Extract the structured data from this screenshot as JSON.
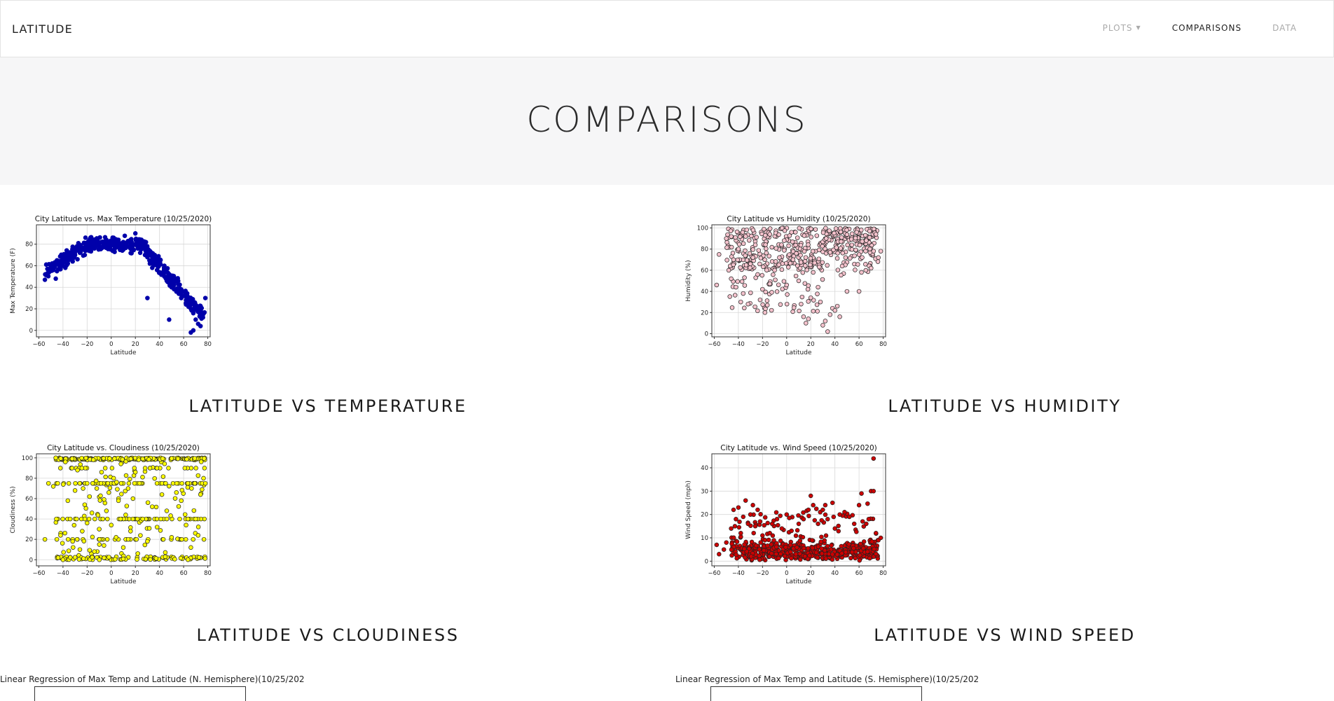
{
  "navbar": {
    "brand": "LATITUDE",
    "links": [
      {
        "label": "PLOTS",
        "active": false,
        "dropdown": true
      },
      {
        "label": "COMPARISONS",
        "active": true,
        "dropdown": false
      },
      {
        "label": "DATA",
        "active": false,
        "dropdown": false
      }
    ]
  },
  "hero": {
    "title": "COMPARISONS"
  },
  "plots": [
    {
      "caption": "LATITUDE VS TEMPERATURE",
      "chart_data": {
        "type": "scatter",
        "title": "City Latitude vs. Max Temperature (10/25/2020)",
        "xlabel": "Latitude",
        "ylabel": "Max Temperature (F)",
        "xlim": [
          -62,
          82
        ],
        "ylim": [
          -6,
          98
        ],
        "xticks": [
          -60,
          -40,
          -20,
          0,
          20,
          40,
          60,
          80
        ],
        "yticks": [
          0,
          20,
          40,
          60,
          80
        ],
        "grid": true,
        "marker_color": "#0000aa",
        "edge_color": "#0000aa",
        "profile": "temp",
        "points": [
          [
            -55,
            47
          ],
          [
            -52,
            54
          ],
          [
            -46,
            48
          ],
          [
            -45,
            55
          ],
          [
            -42,
            57
          ],
          [
            -40,
            60
          ],
          [
            -38,
            58
          ],
          [
            -36,
            62
          ],
          [
            -34,
            66
          ],
          [
            -32,
            64
          ],
          [
            -30,
            70
          ],
          [
            -28,
            66
          ],
          [
            -26,
            72
          ],
          [
            -24,
            75
          ],
          [
            -22,
            70
          ],
          [
            -20,
            78
          ],
          [
            -18,
            80
          ],
          [
            -16,
            82
          ],
          [
            -14,
            76
          ],
          [
            -12,
            84
          ],
          [
            -10,
            80
          ],
          [
            -8,
            82
          ],
          [
            -6,
            78
          ],
          [
            -4,
            84
          ],
          [
            -2,
            80
          ],
          [
            0,
            82
          ],
          [
            2,
            86
          ],
          [
            4,
            80
          ],
          [
            6,
            84
          ],
          [
            8,
            78
          ],
          [
            10,
            82
          ],
          [
            12,
            80
          ],
          [
            14,
            78
          ],
          [
            16,
            84
          ],
          [
            18,
            80
          ],
          [
            20,
            90
          ],
          [
            22,
            76
          ],
          [
            24,
            72
          ],
          [
            26,
            80
          ],
          [
            28,
            70
          ],
          [
            30,
            68
          ],
          [
            32,
            62
          ],
          [
            34,
            58
          ],
          [
            36,
            64
          ],
          [
            38,
            56
          ],
          [
            40,
            54
          ],
          [
            42,
            52
          ],
          [
            44,
            50
          ],
          [
            46,
            46
          ],
          [
            48,
            44
          ],
          [
            50,
            40
          ],
          [
            52,
            42
          ],
          [
            54,
            36
          ],
          [
            56,
            34
          ],
          [
            58,
            30
          ],
          [
            60,
            32
          ],
          [
            62,
            28
          ],
          [
            64,
            22
          ],
          [
            66,
            20
          ],
          [
            68,
            16
          ],
          [
            70,
            10
          ],
          [
            72,
            6
          ],
          [
            74,
            4
          ],
          [
            66,
            -2
          ],
          [
            68,
            0
          ],
          [
            62,
            24
          ],
          [
            58,
            38
          ],
          [
            54,
            46
          ],
          [
            48,
            52
          ],
          [
            44,
            60
          ],
          [
            40,
            64
          ],
          [
            36,
            70
          ],
          [
            30,
            30
          ],
          [
            48,
            10
          ],
          [
            76,
            12
          ],
          [
            78,
            30
          ],
          [
            -48,
            56
          ],
          [
            -44,
            62
          ]
        ]
      }
    },
    {
      "caption": "LATITUDE VS HUMIDITY",
      "chart_data": {
        "type": "scatter",
        "title": "City Latitude vs Humidity (10/25/2020)",
        "xlabel": "Latitude",
        "ylabel": "Humidity (%)",
        "xlim": [
          -62,
          82
        ],
        "ylim": [
          -3,
          103
        ],
        "xticks": [
          -60,
          -40,
          -20,
          0,
          20,
          40,
          60,
          80
        ],
        "yticks": [
          0,
          20,
          40,
          60,
          80,
          100
        ],
        "grid": true,
        "marker_color": "#f4c2cc",
        "edge_color": "#222222",
        "profile": "humid",
        "points": [
          [
            -58,
            46
          ],
          [
            -56,
            75
          ],
          [
            -50,
            90
          ],
          [
            -48,
            60
          ],
          [
            -46,
            52
          ],
          [
            -44,
            70
          ],
          [
            -42,
            44
          ],
          [
            -40,
            80
          ],
          [
            -38,
            30
          ],
          [
            -36,
            38
          ],
          [
            -34,
            92
          ],
          [
            -32,
            28
          ],
          [
            -30,
            66
          ],
          [
            -28,
            72
          ],
          [
            -26,
            84
          ],
          [
            -24,
            56
          ],
          [
            -22,
            32
          ],
          [
            -20,
            42
          ],
          [
            -18,
            20
          ],
          [
            -16,
            27
          ],
          [
            -14,
            94
          ],
          [
            -10,
            60
          ],
          [
            -6,
            72
          ],
          [
            -2,
            88
          ],
          [
            0,
            46
          ],
          [
            4,
            96
          ],
          [
            8,
            76
          ],
          [
            10,
            50
          ],
          [
            12,
            28
          ],
          [
            14,
            16
          ],
          [
            16,
            10
          ],
          [
            18,
            14
          ],
          [
            20,
            34
          ],
          [
            22,
            58
          ],
          [
            26,
            44
          ],
          [
            28,
            30
          ],
          [
            30,
            8
          ],
          [
            32,
            12
          ],
          [
            34,
            2
          ],
          [
            36,
            18
          ],
          [
            38,
            24
          ],
          [
            40,
            22
          ],
          [
            42,
            26
          ],
          [
            44,
            16
          ],
          [
            46,
            64
          ],
          [
            50,
            40
          ],
          [
            54,
            84
          ],
          [
            58,
            96
          ],
          [
            60,
            40
          ],
          [
            62,
            58
          ],
          [
            66,
            88
          ],
          [
            70,
            62
          ],
          [
            72,
            78
          ],
          [
            74,
            94
          ],
          [
            76,
            72
          ],
          [
            78,
            78
          ]
        ]
      }
    },
    {
      "caption": "LATITUDE VS CLOUDINESS",
      "chart_data": {
        "type": "scatter",
        "title": "City Latitude vs. Cloudiness (10/25/2020)",
        "xlabel": "Latitude",
        "ylabel": "Cloudiness (%)",
        "xlim": [
          -62,
          82
        ],
        "ylim": [
          -6,
          104
        ],
        "xticks": [
          -60,
          -40,
          -20,
          0,
          20,
          40,
          60,
          80
        ],
        "yticks": [
          0,
          20,
          40,
          60,
          80,
          100
        ],
        "grid": true,
        "marker_color": "#ffff00",
        "edge_color": "#222222",
        "profile": "cloud",
        "points": [
          [
            -55,
            20
          ],
          [
            -52,
            75
          ],
          [
            -48,
            72
          ],
          [
            -46,
            100
          ],
          [
            -44,
            2
          ],
          [
            -42,
            24
          ],
          [
            -40,
            0
          ],
          [
            -38,
            96
          ],
          [
            -36,
            58
          ],
          [
            -34,
            40
          ],
          [
            -32,
            18
          ],
          [
            -30,
            68
          ],
          [
            -28,
            88
          ],
          [
            -26,
            10
          ],
          [
            -24,
            28
          ],
          [
            -22,
            54
          ],
          [
            -20,
            36
          ],
          [
            -18,
            62
          ],
          [
            -16,
            46
          ],
          [
            -14,
            8
          ],
          [
            -12,
            70
          ],
          [
            -10,
            30
          ],
          [
            -8,
            86
          ],
          [
            -6,
            14
          ],
          [
            -4,
            48
          ],
          [
            -2,
            66
          ],
          [
            0,
            34
          ],
          [
            2,
            80
          ],
          [
            4,
            22
          ],
          [
            6,
            58
          ],
          [
            8,
            94
          ],
          [
            10,
            12
          ],
          [
            12,
            44
          ],
          [
            14,
            70
          ],
          [
            16,
            28
          ],
          [
            18,
            60
          ],
          [
            20,
            86
          ],
          [
            22,
            6
          ],
          [
            26,
            40
          ],
          [
            30,
            18
          ],
          [
            34,
            52
          ],
          [
            38,
            32
          ],
          [
            42,
            64
          ],
          [
            46,
            48
          ],
          [
            50,
            22
          ],
          [
            54,
            66
          ],
          [
            58,
            58
          ],
          [
            62,
            34
          ],
          [
            66,
            12
          ],
          [
            70,
            40
          ],
          [
            72,
            24
          ],
          [
            74,
            64
          ],
          [
            78,
            75
          ]
        ]
      }
    },
    {
      "caption": "LATITUDE VS WIND SPEED",
      "chart_data": {
        "type": "scatter",
        "title": "City Latitude vs. Wind Speed (10/25/2020)",
        "xlabel": "Latitude",
        "ylabel": "Wind Speed (mph)",
        "xlim": [
          -62,
          82
        ],
        "ylim": [
          -2,
          46
        ],
        "xticks": [
          -60,
          -40,
          -20,
          0,
          20,
          40,
          60,
          80
        ],
        "yticks": [
          0,
          10,
          20,
          30,
          40
        ],
        "grid": true,
        "marker_color": "#cc0000",
        "edge_color": "#222222",
        "profile": "wind",
        "points": [
          [
            -58,
            7
          ],
          [
            -56,
            3
          ],
          [
            -52,
            5
          ],
          [
            -50,
            8
          ],
          [
            -46,
            14
          ],
          [
            -44,
            22
          ],
          [
            -42,
            18
          ],
          [
            -40,
            23
          ],
          [
            -38,
            12
          ],
          [
            -36,
            19
          ],
          [
            -34,
            26
          ],
          [
            -32,
            16
          ],
          [
            -30,
            20
          ],
          [
            -28,
            24
          ],
          [
            -26,
            15
          ],
          [
            -24,
            22
          ],
          [
            -22,
            17
          ],
          [
            -20,
            11
          ],
          [
            -18,
            9
          ],
          [
            -14,
            12
          ],
          [
            -12,
            16
          ],
          [
            -8,
            18
          ],
          [
            -4,
            14
          ],
          [
            0,
            20
          ],
          [
            4,
            13
          ],
          [
            10,
            16
          ],
          [
            14,
            18
          ],
          [
            18,
            22
          ],
          [
            20,
            28
          ],
          [
            22,
            24
          ],
          [
            26,
            16
          ],
          [
            30,
            22
          ],
          [
            32,
            24
          ],
          [
            34,
            18
          ],
          [
            38,
            25
          ],
          [
            40,
            14
          ],
          [
            44,
            20
          ],
          [
            48,
            21
          ],
          [
            52,
            19
          ],
          [
            56,
            16
          ],
          [
            60,
            24
          ],
          [
            62,
            29
          ],
          [
            66,
            16
          ],
          [
            68,
            18
          ],
          [
            70,
            30
          ],
          [
            72,
            30
          ],
          [
            72,
            44
          ],
          [
            74,
            12
          ],
          [
            76,
            9
          ],
          [
            78,
            10
          ]
        ]
      }
    }
  ],
  "partial_plots": [
    {
      "title": "Linear Regression of Max Temp and Latitude (N. Hemisphere)(10/25/202"
    },
    {
      "title": "Linear Regression of Max Temp and Latitude (S. Hemisphere)(10/25/202"
    }
  ]
}
